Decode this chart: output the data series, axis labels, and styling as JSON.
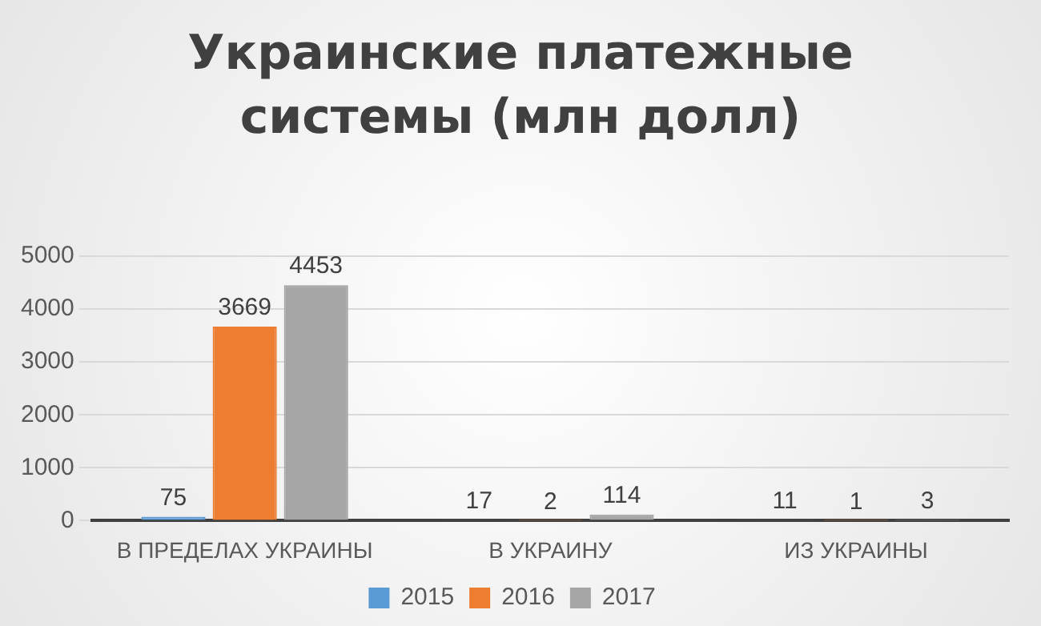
{
  "chart_data": {
    "type": "bar",
    "title": "Украинские платежные системы (млн долл)",
    "categories": [
      "В ПРЕДЕЛАХ УКРАИНЫ",
      "В УКРАИНУ",
      "ИЗ УКРАИНЫ"
    ],
    "series": [
      {
        "name": "2015",
        "color": "#5b9bd5",
        "values": [
          75,
          17,
          11
        ]
      },
      {
        "name": "2016",
        "color": "#ed7d31",
        "values": [
          3669,
          2,
          1
        ]
      },
      {
        "name": "2017",
        "color": "#a5a5a5",
        "values": [
          4453,
          114,
          3
        ]
      }
    ],
    "ylim": [
      0,
      5000
    ],
    "yticks": [
      0,
      1000,
      2000,
      3000,
      4000,
      5000
    ],
    "grid": "y",
    "legend": "bottom",
    "data_labels": true
  }
}
